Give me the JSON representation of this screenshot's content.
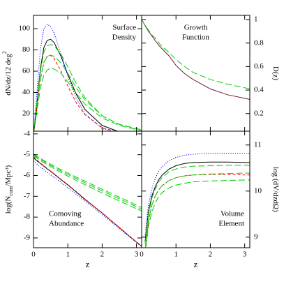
{
  "chart_data": [
    {
      "type": "line",
      "annotation": [
        "Surface",
        "Density"
      ],
      "annotation_corner": "top-right",
      "ylabel": [
        "dN/dz/12 deg",
        "2",
        ""
      ],
      "yaxis_side": "left",
      "xlabel": null,
      "x": [
        0,
        0.1,
        0.2,
        0.3,
        0.4,
        0.5,
        0.6,
        0.8,
        1.0,
        1.25,
        1.5,
        2.0,
        2.5,
        3.0,
        3.15
      ],
      "xlim": [
        0,
        3.15
      ],
      "ylim": [
        3.6,
        112.5
      ],
      "xticks": [
        0,
        1,
        2,
        3
      ],
      "yticks": [
        20,
        40,
        60,
        80,
        100
      ],
      "show_xtick_labels": false,
      "series": [
        {
          "color": "#000000",
          "dash": "solid",
          "values": [
            0,
            30,
            62,
            82,
            89,
            90,
            87,
            74,
            57,
            38,
            24,
            9,
            3,
            1,
            0.5
          ]
        },
        {
          "color": "#0000ff",
          "dash": "dotted",
          "values": [
            0,
            40,
            80,
            100,
            104,
            102,
            96,
            76,
            55,
            34,
            20,
            6,
            2,
            0.5,
            0.3
          ]
        },
        {
          "color": "#ff0000",
          "dash": "dashed",
          "values": [
            0,
            25,
            52,
            68,
            74,
            75,
            72,
            60,
            46,
            30,
            19,
            7,
            2.5,
            1,
            0.5
          ]
        },
        {
          "color": "#00cc00",
          "dash": "longdash",
          "values": [
            0,
            30,
            60,
            78,
            84,
            85,
            84,
            76,
            64,
            48,
            35,
            18,
            10,
            6,
            5
          ]
        },
        {
          "color": "#00cc00",
          "dash": "longdash",
          "values": [
            0,
            27,
            53,
            68,
            74,
            75,
            74,
            68,
            58,
            44,
            33,
            18,
            10,
            6,
            5
          ]
        },
        {
          "color": "#00cc00",
          "dash": "longdash",
          "values": [
            0,
            22,
            44,
            56,
            61,
            63,
            62,
            58,
            50,
            39,
            29,
            16,
            9,
            5,
            4
          ]
        }
      ]
    },
    {
      "type": "line",
      "annotation": [
        "Growth",
        "Function"
      ],
      "annotation_corner": "top-center",
      "ylabel": [
        "D(z)",
        "",
        ""
      ],
      "yaxis_side": "right",
      "xlabel": null,
      "x": [
        0,
        0.1,
        0.2,
        0.3,
        0.4,
        0.5,
        0.6,
        0.8,
        1.0,
        1.25,
        1.5,
        2.0,
        2.5,
        3.0,
        3.15
      ],
      "xlim": [
        0,
        3.15
      ],
      "ylim": [
        0.05,
        1.036
      ],
      "xticks": [
        0,
        1,
        2,
        3
      ],
      "yticks": [
        0.2,
        0.4,
        0.6,
        0.8,
        1
      ],
      "show_xtick_labels": false,
      "series": [
        {
          "color": "#6b1a3a",
          "dash": "solid",
          "values": [
            1,
            0.95,
            0.9,
            0.86,
            0.82,
            0.78,
            0.75,
            0.69,
            0.61,
            0.54,
            0.49,
            0.41,
            0.36,
            0.33,
            0.32
          ]
        },
        {
          "color": "#00cc00",
          "dash": "longdash",
          "values": [
            1,
            0.95,
            0.91,
            0.87,
            0.84,
            0.8,
            0.77,
            0.72,
            0.66,
            0.6,
            0.55,
            0.49,
            0.45,
            0.42,
            0.41
          ]
        }
      ]
    },
    {
      "type": "line",
      "annotation": [
        "Comoving",
        "Abundance"
      ],
      "annotation_corner": "bottom-left",
      "ylabel": [
        "log(N",
        "com",
        "/Mpc³)"
      ],
      "yaxis_side": "left",
      "xlabel": "z",
      "x": [
        0,
        0.1,
        0.2,
        0.3,
        0.4,
        0.5,
        0.6,
        0.8,
        1.0,
        1.25,
        1.5,
        2.0,
        2.5,
        3.0,
        3.15
      ],
      "xlim": [
        0,
        3.15
      ],
      "ylim": [
        -9.47,
        -3.87
      ],
      "xticks": [
        0,
        1,
        2,
        3
      ],
      "yticks": [
        -9,
        -8,
        -7,
        -6,
        -5,
        -4
      ],
      "show_xtick_labels": true,
      "series": [
        {
          "color": "#000000",
          "dash": "solid",
          "values": [
            -5.15,
            -5.3,
            -5.42,
            -5.55,
            -5.68,
            -5.8,
            -5.93,
            -6.2,
            -6.45,
            -6.8,
            -7.15,
            -7.8,
            -8.5,
            -9.2,
            -9.4
          ]
        },
        {
          "color": "#0000ff",
          "dash": "dotted",
          "values": [
            -5.3,
            -5.45,
            -5.6,
            -5.72,
            -5.85,
            -5.97,
            -6.08,
            -6.33,
            -6.58,
            -6.9,
            -7.22,
            -7.88,
            -8.55,
            -9.22,
            -9.42
          ]
        },
        {
          "color": "#ff0000",
          "dash": "dashed",
          "values": [
            -5.1,
            -5.26,
            -5.4,
            -5.53,
            -5.66,
            -5.79,
            -5.92,
            -6.18,
            -6.44,
            -6.78,
            -7.13,
            -7.8,
            -8.5,
            -9.2,
            -9.4
          ]
        },
        {
          "color": "#00cc00",
          "dash": "longdash",
          "values": [
            -4.95,
            -5.07,
            -5.17,
            -5.27,
            -5.37,
            -5.46,
            -5.55,
            -5.72,
            -5.88,
            -6.08,
            -6.27,
            -6.66,
            -7.04,
            -7.42,
            -7.53
          ]
        },
        {
          "color": "#00cc00",
          "dash": "longdash",
          "values": [
            -5.0,
            -5.12,
            -5.22,
            -5.32,
            -5.42,
            -5.51,
            -5.6,
            -5.78,
            -5.95,
            -6.15,
            -6.35,
            -6.74,
            -7.12,
            -7.5,
            -7.61
          ]
        },
        {
          "color": "#00cc00",
          "dash": "longdash",
          "values": [
            -5.05,
            -5.17,
            -5.28,
            -5.38,
            -5.48,
            -5.58,
            -5.67,
            -5.85,
            -6.03,
            -6.24,
            -6.44,
            -6.84,
            -7.22,
            -7.6,
            -7.7
          ]
        }
      ]
    },
    {
      "type": "line",
      "annotation": [
        "Volume",
        "Element"
      ],
      "annotation_corner": "bottom-right",
      "ylabel": [
        "log (dV/dzdΩ)",
        "",
        ""
      ],
      "yaxis_side": "right",
      "xlabel": "z",
      "x": [
        0,
        0.1,
        0.2,
        0.3,
        0.4,
        0.5,
        0.6,
        0.8,
        1.0,
        1.25,
        1.5,
        2.0,
        2.5,
        3.0,
        3.15
      ],
      "xlim": [
        0,
        3.15
      ],
      "ylim": [
        8.77,
        11.3
      ],
      "xticks": [
        0,
        1,
        2,
        3
      ],
      "yticks": [
        9,
        10,
        11
      ],
      "show_xtick_labels": true,
      "series": [
        {
          "color": "#000000",
          "dash": "solid",
          "values": [
            null,
            8.9,
            9.55,
            9.9,
            10.1,
            10.25,
            10.35,
            10.48,
            10.55,
            10.6,
            10.62,
            10.63,
            10.63,
            10.62,
            10.62
          ]
        },
        {
          "color": "#0000ff",
          "dash": "dotted",
          "values": [
            null,
            9.05,
            9.7,
            10.05,
            10.28,
            10.43,
            10.53,
            10.66,
            10.73,
            10.78,
            10.8,
            10.82,
            10.82,
            10.82,
            10.82
          ]
        },
        {
          "color": "#ff0000",
          "dash": "dashed",
          "values": [
            null,
            8.7,
            9.35,
            9.7,
            9.9,
            10.03,
            10.12,
            10.23,
            10.29,
            10.33,
            10.35,
            10.36,
            10.36,
            10.35,
            10.35
          ]
        },
        {
          "color": "#00cc00",
          "dash": "longdash",
          "values": [
            null,
            8.85,
            9.5,
            9.85,
            10.05,
            10.2,
            10.3,
            10.42,
            10.48,
            10.52,
            10.54,
            10.55,
            10.56,
            10.56,
            10.56
          ]
        },
        {
          "color": "#00cc00",
          "dash": "longdash",
          "values": [
            null,
            8.7,
            9.35,
            9.7,
            9.9,
            10.03,
            10.12,
            10.23,
            10.29,
            10.33,
            10.35,
            10.37,
            10.38,
            10.39,
            10.39
          ]
        },
        {
          "color": "#00cc00",
          "dash": "longdash",
          "values": [
            null,
            8.6,
            9.25,
            9.55,
            9.75,
            9.88,
            9.97,
            10.07,
            10.13,
            10.17,
            10.2,
            10.22,
            10.23,
            10.24,
            10.24
          ]
        }
      ]
    }
  ]
}
